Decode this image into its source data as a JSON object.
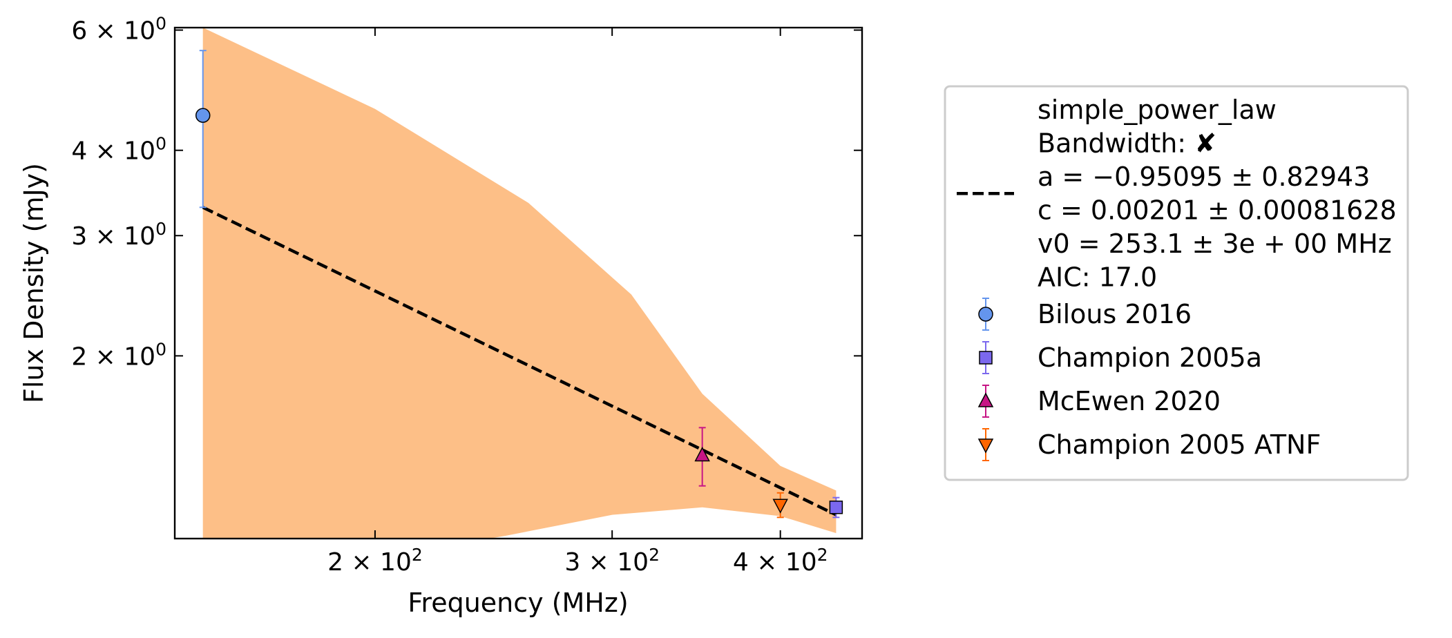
{
  "chart_data": {
    "type": "scatter",
    "x_scale": "log",
    "y_scale": "log",
    "xlabel": "Frequency (MHz)",
    "ylabel": "Flux Density (mJy)",
    "xlim": [
      142,
      460
    ],
    "ylim": [
      1.08,
      6.05
    ],
    "x_ticks": [
      {
        "value": 200,
        "mantissa": "2",
        "label": "2 × 10²"
      },
      {
        "value": 300,
        "mantissa": "3",
        "label": "3 × 10²"
      },
      {
        "value": 400,
        "mantissa": "4",
        "label": "4 × 10²"
      }
    ],
    "y_ticks": [
      {
        "value": 2,
        "mantissa": "2",
        "label": "2 × 10⁰"
      },
      {
        "value": 3,
        "mantissa": "3",
        "label": "3 × 10⁰"
      },
      {
        "value": 4,
        "mantissa": "4",
        "label": "4 × 10⁰"
      },
      {
        "value": 6,
        "mantissa": "6",
        "label": "6 × 10⁰"
      }
    ],
    "tick_base": "10",
    "x_tick_exp": "2",
    "y_tick_exp": "0",
    "series": [
      {
        "name": "Bilous 2016",
        "marker": "circle",
        "color": "#6495ED",
        "edge": "#000000",
        "points": [
          {
            "x": 149,
            "y": 4.5,
            "yerr_low": 3.3,
            "yerr_high": 5.6
          }
        ]
      },
      {
        "name": "Champion 2005a",
        "marker": "square",
        "color": "#7B68EE",
        "edge": "#000000",
        "points": [
          {
            "x": 440,
            "y": 1.2,
            "yerr_low": 1.16,
            "yerr_high": 1.24
          }
        ]
      },
      {
        "name": "McEwen 2020",
        "marker": "triangle-up",
        "color": "#C71585",
        "edge": "#000000",
        "points": [
          {
            "x": 350,
            "y": 1.43,
            "yerr_low": 1.29,
            "yerr_high": 1.57
          }
        ]
      },
      {
        "name": "Champion 2005 ATNF",
        "marker": "triangle-down",
        "color": "#FF6600",
        "edge": "#000000",
        "points": [
          {
            "x": 400,
            "y": 1.21,
            "yerr_low": 1.16,
            "yerr_high": 1.26
          }
        ]
      }
    ],
    "fit": {
      "name": "simple_power_law",
      "line_style": "dashed",
      "color": "#000000",
      "x": [
        149,
        440
      ],
      "y": [
        3.3,
        1.17
      ],
      "band_color": "#FDBF87",
      "band_upper": [
        [
          149,
          6.05
        ],
        [
          200,
          4.6
        ],
        [
          260,
          3.35
        ],
        [
          310,
          2.46
        ],
        [
          350,
          1.76
        ],
        [
          400,
          1.38
        ],
        [
          440,
          1.27
        ]
      ],
      "band_lower": [
        [
          440,
          1.1
        ],
        [
          400,
          1.165
        ],
        [
          350,
          1.2
        ],
        [
          300,
          1.17
        ],
        [
          250,
          1.09
        ],
        [
          230,
          1.06
        ]
      ],
      "legend_lines": [
        {
          "label": "simple_power_law",
          "symbol": ""
        },
        {
          "label": "Bandwidth: ",
          "symbol": "✘"
        },
        {
          "label": "a = −0.95095 ± 0.82943",
          "symbol": ""
        },
        {
          "label": "c = 0.00201 ± 0.00081628",
          "symbol": ""
        },
        {
          "label": "v0 = 253.1 ± 3e + 00 MHz",
          "symbol": ""
        },
        {
          "label": "AIC: 17.0",
          "symbol": ""
        }
      ]
    },
    "legend_position": "outside-right",
    "grid": false
  }
}
